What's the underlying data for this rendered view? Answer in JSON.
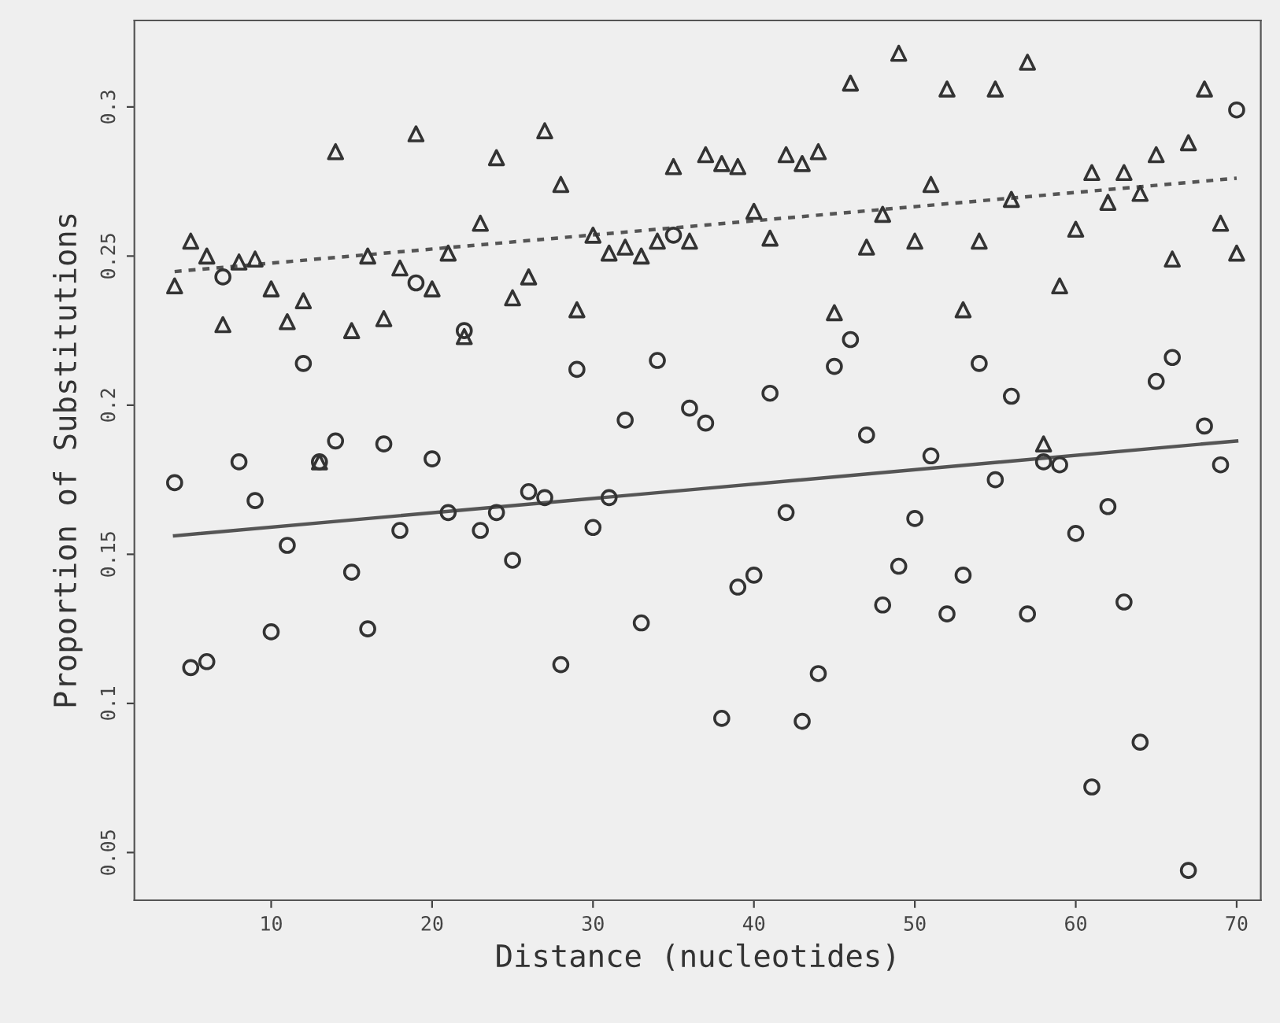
{
  "chart_data": {
    "type": "scatter",
    "xlabel": "Distance (nucleotides)",
    "ylabel": "Proportion of Substitutions",
    "xlim": [
      1.5,
      71.5
    ],
    "ylim": [
      0.034,
      0.329
    ],
    "xticks": [
      10,
      20,
      30,
      40,
      50,
      60,
      70
    ],
    "yticks": [
      0.05,
      0.1,
      0.15,
      0.2,
      0.25,
      0.3
    ],
    "grid": false,
    "x": [
      4,
      5,
      6,
      7,
      8,
      9,
      10,
      11,
      12,
      13,
      14,
      15,
      16,
      17,
      18,
      19,
      20,
      21,
      22,
      23,
      24,
      25,
      26,
      27,
      28,
      29,
      30,
      31,
      32,
      33,
      34,
      35,
      36,
      37,
      38,
      39,
      40,
      41,
      42,
      43,
      44,
      45,
      46,
      47,
      48,
      49,
      50,
      51,
      52,
      53,
      54,
      55,
      56,
      57,
      58,
      59,
      60,
      61,
      62,
      63,
      64,
      65,
      66,
      67,
      68,
      69,
      70
    ],
    "series": [
      {
        "marker": "triangle",
        "color": "#333333",
        "values": [
          0.24,
          0.255,
          0.25,
          0.227,
          0.248,
          0.249,
          0.239,
          0.228,
          0.235,
          0.181,
          0.285,
          0.225,
          0.25,
          0.229,
          0.246,
          0.291,
          0.239,
          0.251,
          0.223,
          0.261,
          0.283,
          0.236,
          0.243,
          0.292,
          0.274,
          0.232,
          0.257,
          0.251,
          0.253,
          0.25,
          0.255,
          0.28,
          0.255,
          0.284,
          0.281,
          0.28,
          0.265,
          0.256,
          0.284,
          0.281,
          0.285,
          0.231,
          0.308,
          0.253,
          0.264,
          0.318,
          0.255,
          0.274,
          0.306,
          0.232,
          0.255,
          0.306,
          0.269,
          0.315,
          0.187,
          0.24,
          0.259,
          0.278,
          0.268,
          0.278,
          0.271,
          0.284,
          0.249,
          0.288,
          0.306,
          0.261,
          0.251
        ]
      },
      {
        "marker": "circle",
        "color": "#333333",
        "values": [
          0.174,
          0.112,
          0.114,
          0.243,
          0.181,
          0.168,
          0.124,
          0.153,
          0.214,
          0.181,
          0.188,
          0.144,
          0.125,
          0.187,
          0.158,
          0.241,
          0.182,
          0.164,
          0.225,
          0.158,
          0.164,
          0.148,
          0.171,
          0.169,
          0.113,
          0.212,
          0.159,
          0.169,
          0.195,
          0.127,
          0.215,
          0.257,
          0.199,
          0.194,
          0.095,
          0.139,
          0.143,
          0.204,
          0.164,
          0.094,
          0.11,
          0.213,
          0.222,
          0.19,
          0.133,
          0.146,
          0.162,
          0.183,
          0.13,
          0.143,
          0.214,
          0.175,
          0.203,
          0.13,
          0.181,
          0.18,
          0.157,
          0.072,
          0.166,
          0.134,
          0.087,
          0.208,
          0.216,
          0.044,
          0.193,
          0.18,
          0.299
        ]
      },
      {
        "type": "line",
        "line_style": "dotted",
        "color": "#555555",
        "x": [
          4,
          37,
          70
        ],
        "values": [
          0.2448,
          0.2604,
          0.2761
        ]
      },
      {
        "type": "line",
        "line_style": "solid",
        "color": "#555555",
        "x": [
          4,
          37,
          70
        ],
        "values": [
          0.1562,
          0.1721,
          0.188
        ]
      }
    ]
  }
}
